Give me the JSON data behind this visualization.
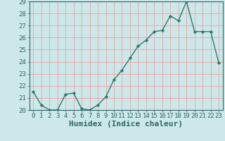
{
  "x": [
    0,
    1,
    2,
    3,
    4,
    5,
    6,
    7,
    8,
    9,
    10,
    11,
    12,
    13,
    14,
    15,
    16,
    17,
    18,
    19,
    20,
    21,
    22,
    23
  ],
  "y": [
    21.5,
    20.4,
    20.0,
    20.0,
    21.3,
    21.4,
    20.1,
    20.0,
    20.4,
    21.1,
    22.5,
    23.3,
    24.3,
    25.3,
    25.8,
    26.5,
    26.6,
    27.8,
    27.4,
    29.0,
    26.5,
    26.5,
    26.5,
    23.9
  ],
  "line_color": "#2d7a6e",
  "marker": "D",
  "marker_size": 2.2,
  "bg_color": "#cce8ea",
  "grid_color": "#f0a0a0",
  "xlabel": "Humidex (Indice chaleur)",
  "ylim": [
    20,
    29
  ],
  "xlim": [
    -0.5,
    23.5
  ],
  "yticks": [
    20,
    21,
    22,
    23,
    24,
    25,
    26,
    27,
    28,
    29
  ],
  "xticks": [
    0,
    1,
    2,
    3,
    4,
    5,
    6,
    7,
    8,
    9,
    10,
    11,
    12,
    13,
    14,
    15,
    16,
    17,
    18,
    19,
    20,
    21,
    22,
    23
  ],
  "tick_fontsize": 6.5,
  "xlabel_fontsize": 8,
  "xlabel_fontweight": "bold",
  "line_width": 1.0
}
